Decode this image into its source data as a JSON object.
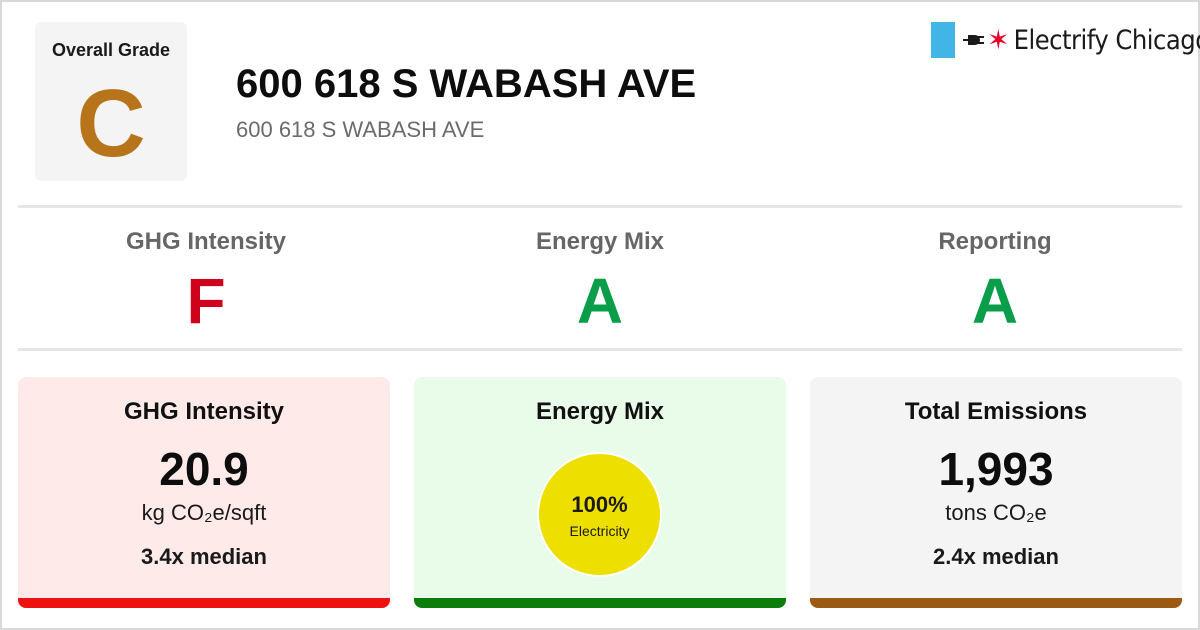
{
  "header": {
    "overall_label": "Overall Grade",
    "overall_grade": "C",
    "overall_grade_color": "#b8741a",
    "title": "600 618 S WABASH AVE",
    "subtitle": "600 618 S WABASH AVE"
  },
  "logo": {
    "text": "Electrify Chicago",
    "icons": [
      "flag-stripe-icon",
      "plug-icon",
      "chicago-star-icon"
    ],
    "stripe_color": "#41b6e6",
    "star_color": "#e4002b"
  },
  "grades": [
    {
      "name": "GHG Intensity",
      "grade": "F",
      "color": "#d0021b"
    },
    {
      "name": "Energy Mix",
      "grade": "A",
      "color": "#0a9e4a"
    },
    {
      "name": "Reporting",
      "grade": "A",
      "color": "#0a9e4a"
    }
  ],
  "cards": {
    "ghg": {
      "heading": "GHG Intensity",
      "value": "20.9",
      "unit": "kg CO₂e/sqft",
      "median": "3.4x median",
      "background": "#ffeaea",
      "bar_color": "#ee1111"
    },
    "energy_mix": {
      "heading": "Energy Mix",
      "percent": "100%",
      "source": "Electricity",
      "fraction": 1.0,
      "pie_color": "#ede000",
      "background": "#e9fbe9",
      "bar_color": "#0b7d0b"
    },
    "emissions": {
      "heading": "Total Emissions",
      "value": "1,993",
      "unit": "tons CO₂e",
      "median": "2.4x median",
      "background": "#f4f4f4",
      "bar_color": "#9a5a12"
    }
  }
}
